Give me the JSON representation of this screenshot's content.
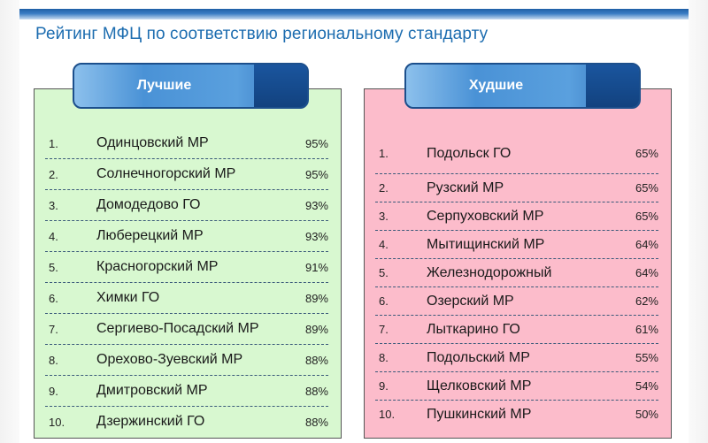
{
  "title": "Рейтинг МФЦ по соответствию региональному стандарту",
  "best": {
    "heading": "Лучшие",
    "rows": [
      {
        "num": "1.",
        "name": "Одинцовский МР",
        "pct": "95%"
      },
      {
        "num": "2.",
        "name": "Солнечногорский МР",
        "pct": "95%"
      },
      {
        "num": "3.",
        "name": "Домодедово ГО",
        "pct": "93%"
      },
      {
        "num": "4.",
        "name": "Люберецкий МР",
        "pct": "93%"
      },
      {
        "num": "5.",
        "name": "Красногорский МР",
        "pct": "91%"
      },
      {
        "num": "6.",
        "name": "Химки ГО",
        "pct": "89%"
      },
      {
        "num": "7.",
        "name": "Сергиево-Посадский МР",
        "pct": "89%"
      },
      {
        "num": "8.",
        "name": "Орехово-Зуевский МР",
        "pct": "88%"
      },
      {
        "num": "9.",
        "name": "Дмитровский МР",
        "pct": "88%"
      },
      {
        "num": "10.",
        "name": "Дзержинский ГО",
        "pct": "88%"
      }
    ]
  },
  "worst": {
    "heading": "Худшие",
    "rows": [
      {
        "num": "1.",
        "name": "Подольск ГО",
        "pct": "65%"
      },
      {
        "num": "2.",
        "name": "Рузский МР",
        "pct": "65%"
      },
      {
        "num": "3.",
        "name": "Серпуховский МР",
        "pct": "65%"
      },
      {
        "num": "4.",
        "name": "Мытищинский МР",
        "pct": "64%"
      },
      {
        "num": "5.",
        "name": "Железнодорожный",
        "pct": "64%"
      },
      {
        "num": "6.",
        "name": "Озерский МР",
        "pct": "62%"
      },
      {
        "num": "7.",
        "name": "Лыткарино ГО",
        "pct": "61%"
      },
      {
        "num": "8.",
        "name": "Подольский МР",
        "pct": "55%"
      },
      {
        "num": "9.",
        "name": "Щелковский МР",
        "pct": "54%"
      },
      {
        "num": "10.",
        "name": "Пушкинский МР",
        "pct": "50%"
      }
    ]
  },
  "colors": {
    "title": "#1d6db0",
    "best_bg": "#d8f8d0",
    "worst_bg": "#fcbccb",
    "tab_dark": "#12427f"
  }
}
